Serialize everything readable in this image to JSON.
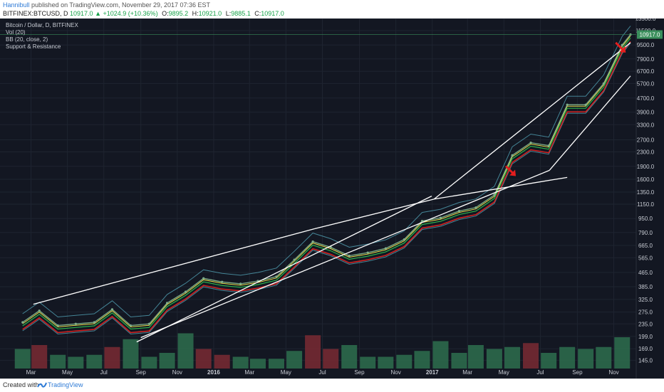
{
  "header": {
    "author": "Hannibull",
    "published_text": "published on TradingView.com, November 29, 2017 07:36 EST",
    "symbol": "BITFINEX:BTCUSD, D",
    "last": "10917.0",
    "change": "▲ +1024.9 (+10.36%)",
    "o_label": "O:",
    "o_value": "9895.2",
    "h_label": "H:",
    "h_value": "10921.0",
    "l_label": "L:",
    "l_value": "9885.1",
    "c_label": "C:",
    "c_value": "10917.0"
  },
  "legend": {
    "title": "Bitcoin / Dollar, D, BITFINEX",
    "items": [
      "Vol (20)",
      "BB (20, close, 2)",
      "Support & Resistance"
    ]
  },
  "footer": {
    "created_with": "Created with",
    "brand": "TradingView"
  },
  "colors": {
    "background": "#131722",
    "grid": "#1e2430",
    "text": "#c8ccd4",
    "candle_up": "#7fae8a",
    "candle_down": "#b05a5a",
    "ma_red": "#d92020",
    "ma_green": "#2bb34b",
    "ma_yellow": "#e6e04c",
    "bb": "#5ab3c8",
    "trendline": "#ffffff",
    "arrow": "#e31e1e",
    "vol_up": "#2e6e4e",
    "vol_down": "#7a2a33",
    "price_tag": "#3a8f5c"
  },
  "chart_data": {
    "type": "line",
    "title": "Bitcoin / Dollar, D, BITFINEX",
    "xlabel": "",
    "ylabel": "",
    "scale": "log",
    "ylim": [
      130,
      13500
    ],
    "x_ticks": [
      "Mar",
      "May",
      "Jul",
      "Sep",
      "Nov",
      "2016",
      "Mar",
      "May",
      "Jul",
      "Sep",
      "Nov",
      "2017",
      "Mar",
      "May",
      "Jul",
      "Sep",
      "Nov"
    ],
    "y_ticks": [
      13500.0,
      11500.0,
      9500.0,
      7900.0,
      6700.0,
      5700.0,
      4700.0,
      3900.0,
      3300.0,
      2700.0,
      2300.0,
      1900.0,
      1600.0,
      1350.0,
      1150.0,
      950.0,
      790.0,
      665.0,
      565.0,
      465.0,
      385.0,
      325.0,
      275.0,
      235.0,
      199.0,
      169.0,
      145.0
    ],
    "last_price": "10917.0",
    "series": [
      {
        "name": "BTCUSD",
        "x": [
          "2015-02",
          "2015-03",
          "2015-04",
          "2015-05",
          "2015-06",
          "2015-07",
          "2015-08",
          "2015-09",
          "2015-10",
          "2015-11",
          "2015-12",
          "2016-01",
          "2016-02",
          "2016-03",
          "2016-04",
          "2016-05",
          "2016-06",
          "2016-07",
          "2016-08",
          "2016-09",
          "2016-10",
          "2016-11",
          "2016-12",
          "2017-01",
          "2017-02",
          "2017-03",
          "2017-04",
          "2017-05",
          "2017-06",
          "2017-07",
          "2017-08",
          "2017-09",
          "2017-10",
          "2017-11",
          "2017-11-29"
        ],
        "values": [
          240,
          280,
          230,
          235,
          240,
          285,
          230,
          235,
          310,
          360,
          430,
          410,
          400,
          415,
          440,
          550,
          700,
          650,
          580,
          605,
          640,
          720,
          920,
          960,
          1050,
          1100,
          1300,
          2200,
          2600,
          2500,
          4300,
          4300,
          5700,
          9500,
          10917
        ]
      }
    ],
    "volume": {
      "name": "Vol (20)",
      "x": [
        "2015-02",
        "2015-03",
        "2015-04",
        "2015-05",
        "2015-06",
        "2015-07",
        "2015-08",
        "2015-09",
        "2015-10",
        "2015-11",
        "2015-12",
        "2016-01",
        "2016-02",
        "2016-03",
        "2016-04",
        "2016-05",
        "2016-06",
        "2016-07",
        "2016-08",
        "2016-09",
        "2016-10",
        "2016-11",
        "2016-12",
        "2017-01",
        "2017-02",
        "2017-03",
        "2017-04",
        "2017-05",
        "2017-06",
        "2017-07",
        "2017-08",
        "2017-09",
        "2017-10",
        "2017-11"
      ],
      "values": [
        0.5,
        0.6,
        0.35,
        0.3,
        0.35,
        0.55,
        0.75,
        0.3,
        0.4,
        0.9,
        0.5,
        0.35,
        0.3,
        0.25,
        0.25,
        0.45,
        0.85,
        0.5,
        0.6,
        0.3,
        0.3,
        0.35,
        0.45,
        0.7,
        0.4,
        0.6,
        0.5,
        0.55,
        0.65,
        0.4,
        0.55,
        0.5,
        0.55,
        0.8
      ]
    },
    "trendlines": [
      {
        "name": "resistance-upper-1",
        "from": [
          "2015-03-05",
          305
        ],
        "to": [
          "2016-06-18",
          830
        ]
      },
      {
        "name": "resistance-upper-2",
        "from": [
          "2016-06-18",
          830
        ],
        "to": [
          "2017-01-04",
          1230
        ]
      },
      {
        "name": "resistance-upper-3",
        "from": [
          "2017-01-04",
          1230
        ],
        "to": [
          "2017-11-29",
          9800
        ]
      },
      {
        "name": "resistance-upper-4",
        "from": [
          "2017-01-04",
          1230
        ],
        "to": [
          "2017-08-15",
          1640
        ]
      },
      {
        "name": "support-lower-1",
        "from": [
          "2015-08-25",
          185
        ],
        "to": [
          "2016-12-31",
          1280
        ]
      },
      {
        "name": "support-lower-2",
        "from": [
          "2015-09-01",
          196
        ],
        "to": [
          "2017-07-16",
          1800
        ]
      },
      {
        "name": "support-lower-3",
        "from": [
          "2017-07-16",
          1800
        ],
        "to": [
          "2017-11-29",
          6300
        ]
      }
    ],
    "annotations": [
      {
        "type": "arrow",
        "at": [
          "2017-05",
          1750
        ]
      },
      {
        "type": "arrow",
        "at": [
          "2017-11",
          9000
        ]
      }
    ],
    "legend_position": "top-left",
    "grid": true
  }
}
